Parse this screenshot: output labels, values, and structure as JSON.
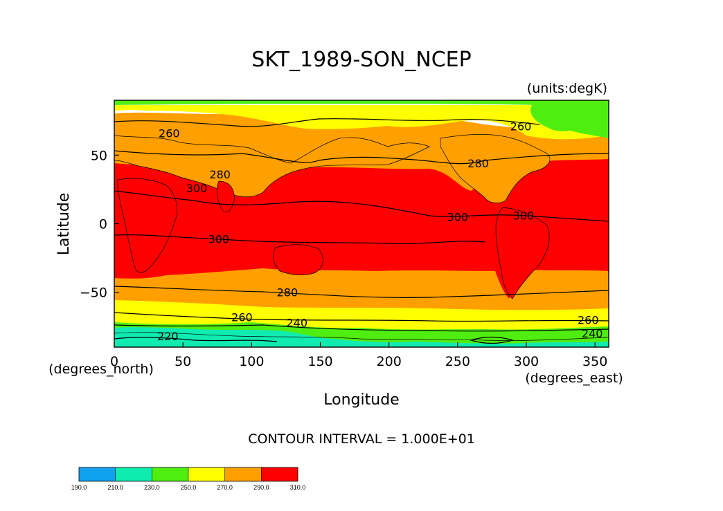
{
  "title": "SKT_1989-SON_NCEP",
  "units": "(units:degK)",
  "x_unit": "(degrees_north)",
  "x_unit_right": "(degrees_east)",
  "xlabel": "Longitude",
  "ylabel": "Latitude",
  "contour_interval": "CONTOUR INTERVAL = 1.000E+01",
  "map_data": {
    "lon_range": [
      0,
      360
    ],
    "lat_range": [
      -90,
      90
    ],
    "x_ticks": [
      0,
      50,
      100,
      150,
      200,
      250,
      300,
      350
    ],
    "y_ticks": [
      50,
      0,
      -50
    ],
    "y_tick_labels": [
      "50",
      "0",
      "−50"
    ],
    "contour_labels": [
      {
        "text": "260",
        "lon": 40,
        "lat": 66
      },
      {
        "text": "280",
        "lon": 265,
        "lat": 44
      },
      {
        "text": "260",
        "lon": 296,
        "lat": 71
      },
      {
        "text": "280",
        "lon": 77,
        "lat": 36
      },
      {
        "text": "300",
        "lon": 60,
        "lat": 26
      },
      {
        "text": "300",
        "lon": 250,
        "lat": 5
      },
      {
        "text": "300",
        "lon": 298,
        "lat": 6
      },
      {
        "text": "300",
        "lon": 76,
        "lat": -11
      },
      {
        "text": "280",
        "lon": 126,
        "lat": -50
      },
      {
        "text": "260",
        "lon": 93,
        "lat": -68
      },
      {
        "text": "240",
        "lon": 133,
        "lat": -72
      },
      {
        "text": "220",
        "lon": 39,
        "lat": -82
      },
      {
        "text": "260",
        "lon": 345,
        "lat": -70
      },
      {
        "text": "240",
        "lon": 348,
        "lat": -80
      }
    ]
  },
  "colorbar": {
    "ticks": [
      "190.0",
      "210.0",
      "230.0",
      "250.0",
      "270.0",
      "290.0",
      "310.0"
    ],
    "colors": [
      "#10a0f0",
      "#10ebb0",
      "#50ee10",
      "#ffff00",
      "#ffa000",
      "#ff0000"
    ]
  },
  "colors": {
    "c190": "#10a0f0",
    "c210": "#10ebb0",
    "c230": "#50ee10",
    "c250": "#ffff00",
    "c270": "#ffa000",
    "c290": "#ff0000"
  }
}
